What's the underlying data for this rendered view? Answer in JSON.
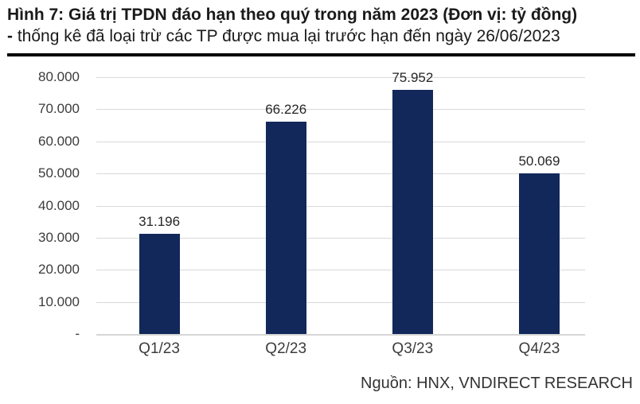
{
  "title": {
    "line1": "Hình 7: Giá trị TPDN đáo hạn theo quý trong năm 2023 (Đơn vị: tỷ đồng)",
    "line2_prefix": "-",
    "line2_text": " thống kê đã loại trừ các TP được mua lại trước hạn đến ngày 26/06/2023"
  },
  "source": "Nguồn: HNX, VNDIRECT RESEARCH",
  "colors": {
    "bar": "#12285a",
    "gridline": "#d9d9d9",
    "title_text": "#1a1a1a",
    "axis_text": "#3c3c3c",
    "rule": "#000000"
  },
  "chart_data": {
    "type": "bar",
    "title": "Giá trị TPDN đáo hạn theo quý trong năm 2023 (tỷ đồng)",
    "categories": [
      "Q1/23",
      "Q2/23",
      "Q3/23",
      "Q4/23"
    ],
    "values": [
      31196,
      66226,
      75952,
      50069
    ],
    "value_labels": [
      "31.196",
      "66.226",
      "75.952",
      "50.069"
    ],
    "y_ticks": [
      "80.000",
      "70.000",
      "60.000",
      "50.000",
      "40.000",
      "30.000",
      "20.000",
      "10.000",
      "-"
    ],
    "y_tick_values": [
      80000,
      70000,
      60000,
      50000,
      40000,
      30000,
      20000,
      10000,
      0
    ],
    "ylim": [
      0,
      80000
    ],
    "xlabel": "",
    "ylabel": "",
    "grid": true,
    "legend": "none",
    "data_labels": "above-bars"
  }
}
